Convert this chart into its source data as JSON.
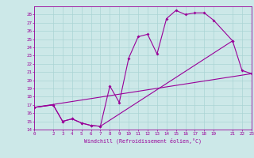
{
  "title": "",
  "xlabel": "Windchill (Refroidissement éolien,°C)",
  "bg_color": "#cce8e8",
  "line_color": "#990099",
  "grid_color": "#aad4d4",
  "xlim": [
    0,
    23
  ],
  "ylim": [
    14,
    29
  ],
  "xticks": [
    0,
    2,
    3,
    4,
    5,
    6,
    7,
    8,
    9,
    10,
    11,
    12,
    13,
    14,
    15,
    16,
    17,
    18,
    19,
    21,
    22,
    23
  ],
  "yticks": [
    14,
    15,
    16,
    17,
    18,
    19,
    20,
    21,
    22,
    23,
    24,
    25,
    26,
    27,
    28
  ],
  "line1_x": [
    0,
    2,
    3,
    4,
    5,
    6,
    7,
    8,
    9,
    10,
    11,
    12,
    13,
    14,
    15,
    16,
    17,
    18,
    19,
    21
  ],
  "line1_y": [
    16.7,
    17.0,
    15.0,
    15.3,
    14.8,
    14.5,
    14.4,
    19.3,
    17.3,
    22.7,
    25.3,
    25.6,
    23.2,
    27.5,
    28.5,
    28.0,
    28.2,
    28.2,
    27.3,
    24.8
  ],
  "line2_x": [
    0,
    2,
    3,
    4,
    5,
    6,
    7,
    21,
    22,
    23
  ],
  "line2_y": [
    16.7,
    17.0,
    15.0,
    15.3,
    14.8,
    14.5,
    14.4,
    24.8,
    21.2,
    20.8
  ],
  "line3_x": [
    0,
    23
  ],
  "line3_y": [
    16.7,
    20.8
  ]
}
